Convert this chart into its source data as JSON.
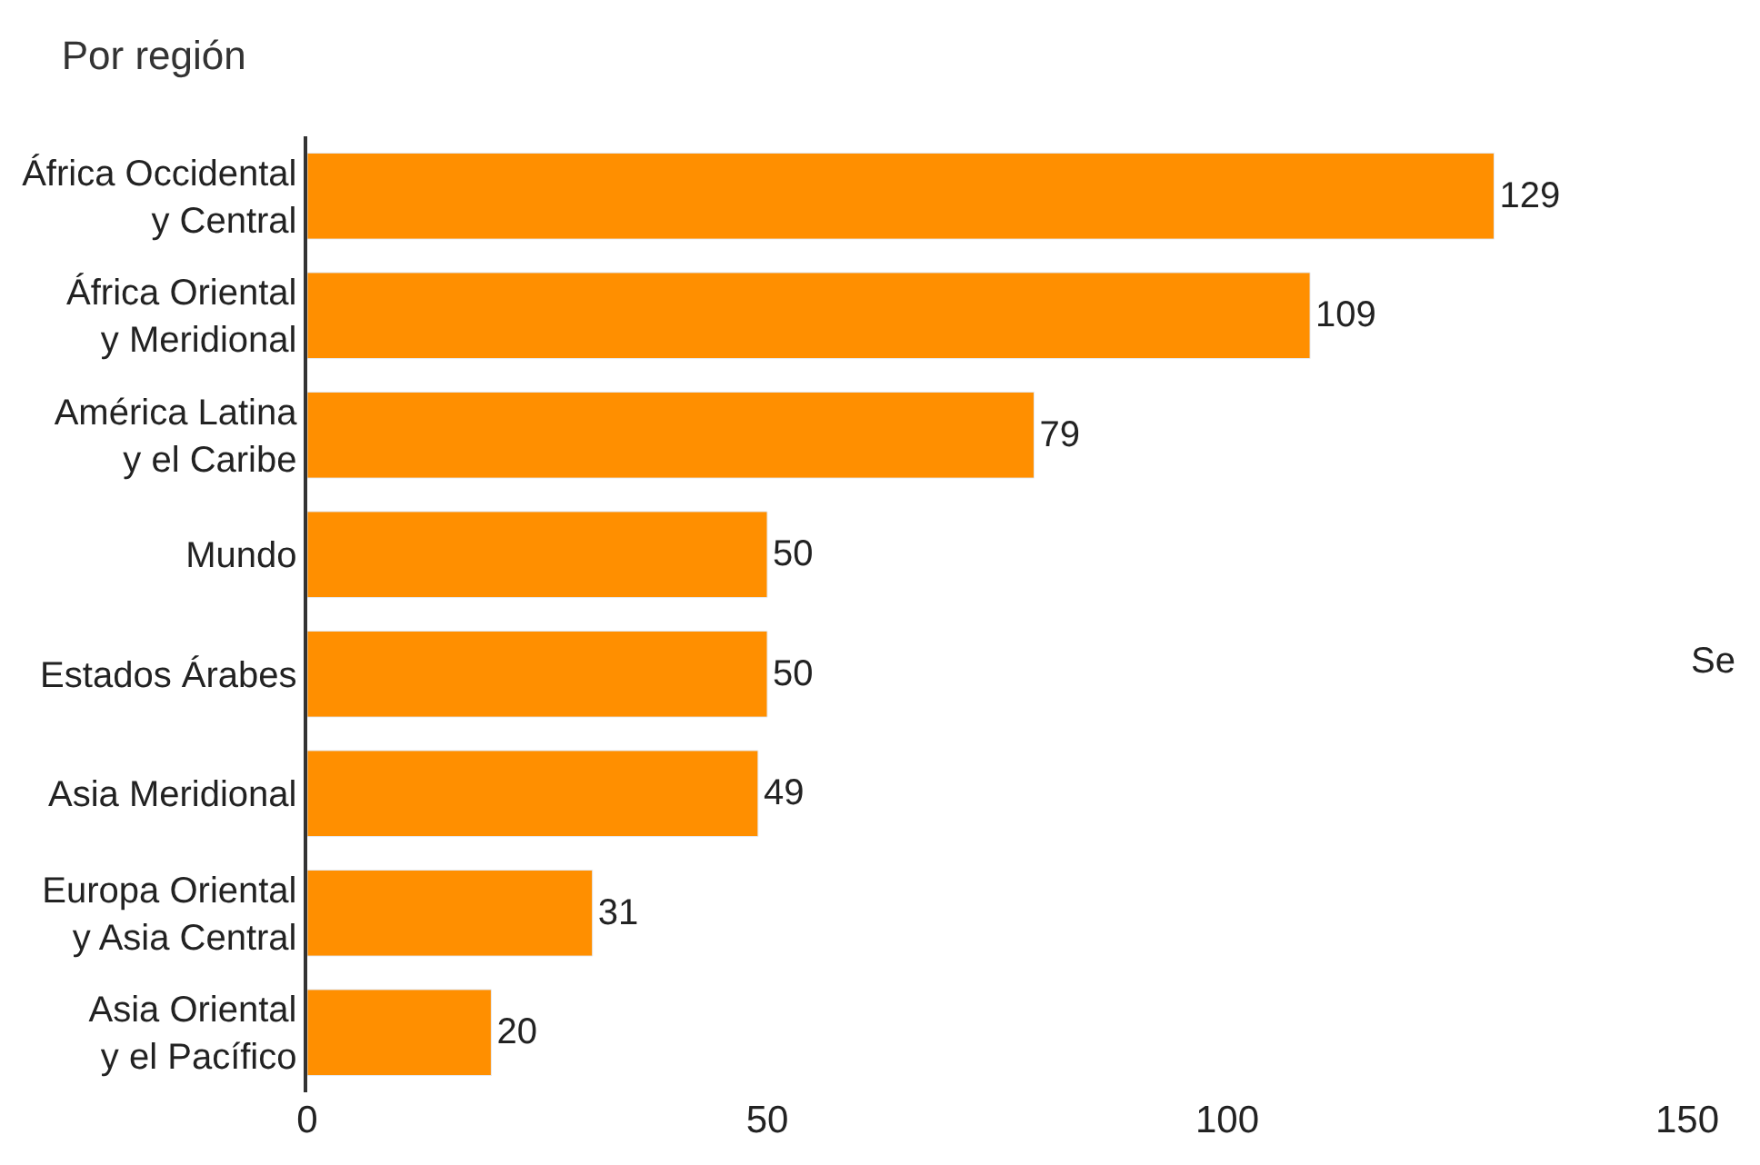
{
  "chart_data": {
    "type": "bar",
    "orientation": "horizontal",
    "title": "Por región",
    "categories": [
      "África Occidental\ny Central",
      "África Oriental\ny Meridional",
      "América Latina\ny el Caribe",
      "Mundo",
      "Estados Árabes",
      "Asia Meridional",
      "Europa Oriental\ny Asia Central",
      "Asia Oriental\ny el Pacífico"
    ],
    "values": [
      129,
      109,
      79,
      50,
      50,
      49,
      31,
      20
    ],
    "color": "#ff8f00",
    "xlim": [
      0,
      150
    ],
    "xticks": [
      0,
      50,
      100,
      150
    ],
    "data_labels": true,
    "annotations": [
      "Se"
    ]
  }
}
